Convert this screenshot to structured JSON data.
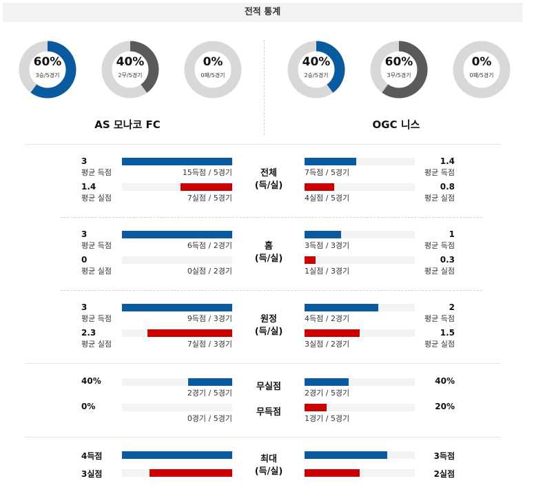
{
  "header": {
    "title": "전적 통계"
  },
  "colors": {
    "blue": "#0a5aa0",
    "red": "#cc0000",
    "dark": "#5a5a5a",
    "track": "#d8d8d8"
  },
  "teams": [
    {
      "name": "AS 모나코 FC",
      "donuts": [
        {
          "pct": "60%",
          "sub": "3승/5경기",
          "fraction": 0.6,
          "color": "blue"
        },
        {
          "pct": "40%",
          "sub": "2무/5경기",
          "fraction": 0.4,
          "color": "dark"
        },
        {
          "pct": "0%",
          "sub": "0패/5경기",
          "fraction": 0.0,
          "color": "dark"
        }
      ]
    },
    {
      "name": "OGC 니스",
      "donuts": [
        {
          "pct": "40%",
          "sub": "2승/5경기",
          "fraction": 0.4,
          "color": "blue"
        },
        {
          "pct": "60%",
          "sub": "3무/5경기",
          "fraction": 0.6,
          "color": "dark"
        },
        {
          "pct": "0%",
          "sub": "0패/5경기",
          "fraction": 0.0,
          "color": "dark"
        }
      ]
    }
  ],
  "sections": [
    {
      "center": [
        "전체",
        "(득/실)"
      ],
      "rows": [
        {
          "left": {
            "value": "3",
            "label": "평균 득점",
            "fraction": 1.0,
            "caption": "15득점 / 5경기"
          },
          "right": {
            "value": "1.4",
            "label": "평균 득점",
            "fraction": 0.47,
            "caption": "7득점 / 5경기"
          },
          "color": "blue"
        },
        {
          "left": {
            "value": "1.4",
            "label": "평균 실점",
            "fraction": 0.47,
            "caption": "7실점 / 5경기"
          },
          "right": {
            "value": "0.8",
            "label": "평균 실점",
            "fraction": 0.27,
            "caption": "4실점 / 5경기"
          },
          "color": "red"
        }
      ]
    },
    {
      "center": [
        "홈",
        "(득/실)"
      ],
      "rows": [
        {
          "left": {
            "value": "3",
            "label": "평균 득점",
            "fraction": 1.0,
            "caption": "6득점 / 2경기"
          },
          "right": {
            "value": "1",
            "label": "평균 득점",
            "fraction": 0.33,
            "caption": "3득점 / 3경기"
          },
          "color": "blue"
        },
        {
          "left": {
            "value": "0",
            "label": "평균 실점",
            "fraction": 0.0,
            "caption": "0실점 / 2경기"
          },
          "right": {
            "value": "0.3",
            "label": "평균 실점",
            "fraction": 0.1,
            "caption": "1실점 / 3경기"
          },
          "color": "red"
        }
      ]
    },
    {
      "center": [
        "원정",
        "(득/실)"
      ],
      "rows": [
        {
          "left": {
            "value": "3",
            "label": "평균 득점",
            "fraction": 1.0,
            "caption": "9득점 / 3경기"
          },
          "right": {
            "value": "2",
            "label": "평균 득점",
            "fraction": 0.67,
            "caption": "4득점 / 2경기"
          },
          "color": "blue"
        },
        {
          "left": {
            "value": "2.3",
            "label": "평균 실점",
            "fraction": 0.77,
            "caption": "7실점 / 3경기"
          },
          "right": {
            "value": "1.5",
            "label": "평균 실점",
            "fraction": 0.5,
            "caption": "3실점 / 2경기"
          },
          "color": "red"
        }
      ]
    }
  ],
  "cleansheet": {
    "rows": [
      {
        "center": "무실점",
        "color": "blue",
        "left": {
          "value": "40%",
          "fraction": 0.4,
          "caption": "2경기 / 5경기"
        },
        "right": {
          "value": "40%",
          "fraction": 0.4,
          "caption": "2경기 / 5경기"
        }
      },
      {
        "center": "무득점",
        "color": "red",
        "left": {
          "value": "0%",
          "fraction": 0.0,
          "caption": "0경기 / 5경기"
        },
        "right": {
          "value": "20%",
          "fraction": 0.2,
          "caption": "1경기 / 5경기"
        }
      }
    ]
  },
  "max": {
    "center": [
      "최대",
      "(득/실)"
    ],
    "rows": [
      {
        "color": "blue",
        "left": {
          "value": "4득점",
          "fraction": 1.0
        },
        "right": {
          "value": "3득점",
          "fraction": 0.75
        }
      },
      {
        "color": "red",
        "left": {
          "value": "3실점",
          "fraction": 0.75
        },
        "right": {
          "value": "2실점",
          "fraction": 0.5
        }
      }
    ]
  }
}
